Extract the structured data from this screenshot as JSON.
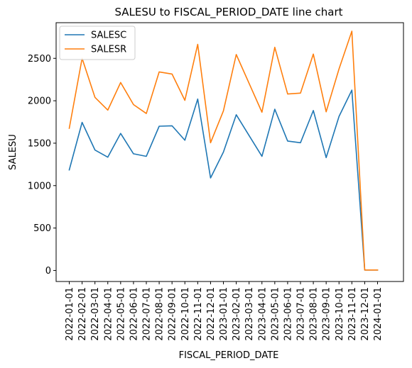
{
  "chart_data": {
    "type": "line",
    "title": "SALESU to FISCAL_PERIOD_DATE line chart",
    "xlabel": "FISCAL_PERIOD_DATE",
    "ylabel": "SALESU",
    "ylim": [
      -130,
      2920
    ],
    "yticks": [
      0,
      500,
      1000,
      1500,
      2000,
      2500
    ],
    "grid": false,
    "legend_position": "top-left",
    "categories": [
      "2022-01-01",
      "2022-02-01",
      "2022-03-01",
      "2022-04-01",
      "2022-05-01",
      "2022-06-01",
      "2022-07-01",
      "2022-08-01",
      "2022-09-01",
      "2022-10-01",
      "2022-11-01",
      "2022-12-01",
      "2023-01-01",
      "2023-02-01",
      "2023-03-01",
      "2023-04-01",
      "2023-05-01",
      "2023-06-01",
      "2023-07-01",
      "2023-08-01",
      "2023-09-01",
      "2023-10-01",
      "2023-11-01",
      "2023-12-01",
      "2024-01-01"
    ],
    "series": [
      {
        "name": "SALESC",
        "color": "#1f77b4",
        "values": [
          1185,
          1745,
          1420,
          1335,
          1615,
          1375,
          1345,
          1700,
          1705,
          1535,
          2020,
          1090,
          1395,
          1835,
          1590,
          1345,
          1900,
          1525,
          1505,
          1885,
          1330,
          1815,
          2125,
          5,
          5
        ]
      },
      {
        "name": "SALESR",
        "color": "#ff7f0e",
        "values": [
          1675,
          2500,
          2040,
          1890,
          2215,
          1955,
          1850,
          2340,
          2315,
          2005,
          2665,
          1505,
          1880,
          2545,
          2205,
          1865,
          2630,
          2080,
          2090,
          2550,
          1870,
          2375,
          2820,
          5,
          5
        ]
      }
    ]
  }
}
